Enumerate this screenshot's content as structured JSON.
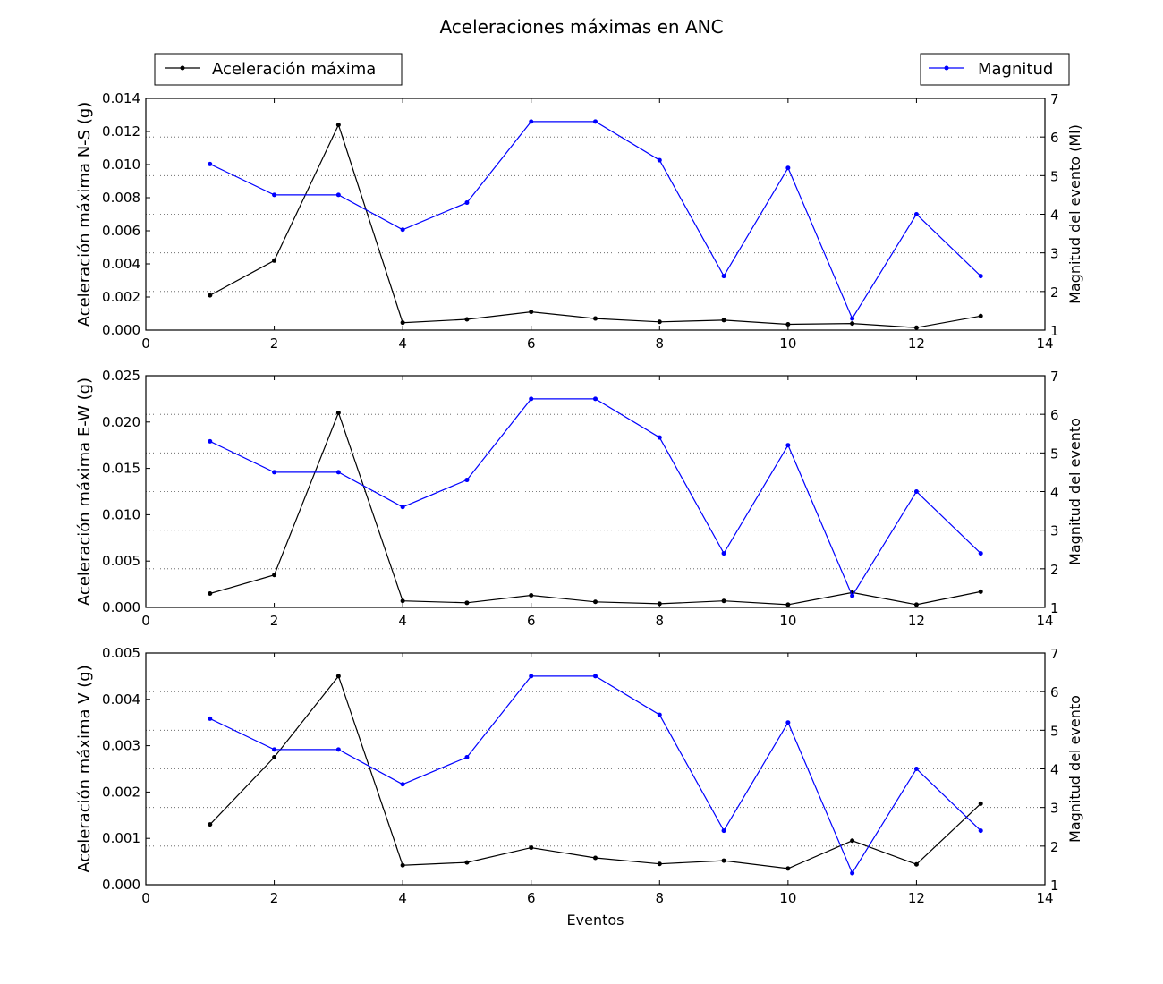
{
  "title": "Aceleraciones máximas en ANC",
  "legend": {
    "left_label": "Aceleración máxima",
    "right_label": "Magnitud",
    "left_placement": "top-left",
    "right_placement": "top-right"
  },
  "colors": {
    "accel": "#000000",
    "magnitude": "#0000ff",
    "grid": "#555555"
  },
  "chart_data": [
    {
      "type": "line",
      "title": "",
      "xlabel": "",
      "ylabel": "Aceleración máxima N-S (g)",
      "ylabel_right": "Magnitud del evento (Ml)",
      "xlim": [
        0,
        14
      ],
      "xticks": [
        "0",
        "2",
        "4",
        "6",
        "8",
        "10",
        "12",
        "14"
      ],
      "ylim": [
        0,
        0.014
      ],
      "yticks": [
        "0.000",
        "0.002",
        "0.004",
        "0.006",
        "0.008",
        "0.010",
        "0.012",
        "0.014"
      ],
      "ylim_right": [
        1,
        7
      ],
      "yticks_right": [
        "1",
        "2",
        "3",
        "4",
        "5",
        "6",
        "7"
      ],
      "grid": "horizontal dotted at right-axis ticks",
      "x": [
        1,
        2,
        3,
        4,
        5,
        6,
        7,
        8,
        9,
        10,
        11,
        12,
        13
      ],
      "series": [
        {
          "name": "Aceleración máxima",
          "axis": "left",
          "color": "#000000",
          "values": [
            0.0021,
            0.0042,
            0.0124,
            0.00045,
            0.00065,
            0.0011,
            0.0007,
            0.0005,
            0.0006,
            0.00035,
            0.0004,
            0.00015,
            0.00085
          ]
        },
        {
          "name": "Magnitud",
          "axis": "right",
          "color": "#0000ff",
          "values": [
            5.3,
            4.5,
            4.5,
            3.6,
            4.3,
            6.4,
            6.4,
            5.4,
            2.4,
            5.2,
            1.3,
            4.0,
            2.4
          ]
        }
      ]
    },
    {
      "type": "line",
      "title": "",
      "xlabel": "",
      "ylabel": "Aceleración máxima E-W (g)",
      "ylabel_right": "Magnitud del evento",
      "xlim": [
        0,
        14
      ],
      "xticks": [
        "0",
        "2",
        "4",
        "6",
        "8",
        "10",
        "12",
        "14"
      ],
      "ylim": [
        0,
        0.025
      ],
      "yticks": [
        "0.000",
        "0.005",
        "0.010",
        "0.015",
        "0.020",
        "0.025"
      ],
      "ylim_right": [
        1,
        7
      ],
      "yticks_right": [
        "1",
        "2",
        "3",
        "4",
        "5",
        "6",
        "7"
      ],
      "grid": "horizontal dotted at right-axis ticks",
      "x": [
        1,
        2,
        3,
        4,
        5,
        6,
        7,
        8,
        9,
        10,
        11,
        12,
        13
      ],
      "series": [
        {
          "name": "Aceleración máxima",
          "axis": "left",
          "color": "#000000",
          "values": [
            0.0015,
            0.0035,
            0.021,
            0.0007,
            0.0005,
            0.0013,
            0.0006,
            0.0004,
            0.0007,
            0.0003,
            0.0016,
            0.0003,
            0.0017
          ]
        },
        {
          "name": "Magnitud",
          "axis": "right",
          "color": "#0000ff",
          "values": [
            5.3,
            4.5,
            4.5,
            3.6,
            4.3,
            6.4,
            6.4,
            5.4,
            2.4,
            5.2,
            1.3,
            4.0,
            2.4
          ]
        }
      ]
    },
    {
      "type": "line",
      "title": "",
      "xlabel": "Eventos",
      "ylabel": "Aceleración máxima V (g)",
      "ylabel_right": "Magnitud del evento",
      "xlim": [
        0,
        14
      ],
      "xticks": [
        "0",
        "2",
        "4",
        "6",
        "8",
        "10",
        "12",
        "14"
      ],
      "ylim": [
        0,
        0.005
      ],
      "yticks": [
        "0.000",
        "0.001",
        "0.002",
        "0.003",
        "0.004",
        "0.005"
      ],
      "ylim_right": [
        1,
        7
      ],
      "yticks_right": [
        "1",
        "2",
        "3",
        "4",
        "5",
        "6",
        "7"
      ],
      "grid": "horizontal dotted at right-axis ticks",
      "x": [
        1,
        2,
        3,
        4,
        5,
        6,
        7,
        8,
        9,
        10,
        11,
        12,
        13
      ],
      "series": [
        {
          "name": "Aceleración máxima",
          "axis": "left",
          "color": "#000000",
          "values": [
            0.0013,
            0.00275,
            0.0045,
            0.00042,
            0.00048,
            0.0008,
            0.00058,
            0.00045,
            0.00052,
            0.00035,
            0.00095,
            0.00044,
            0.00175
          ]
        },
        {
          "name": "Magnitud",
          "axis": "right",
          "color": "#0000ff",
          "values": [
            5.3,
            4.5,
            4.5,
            3.6,
            4.3,
            6.4,
            6.4,
            5.4,
            2.4,
            5.2,
            1.3,
            4.0,
            2.4
          ]
        }
      ]
    }
  ]
}
